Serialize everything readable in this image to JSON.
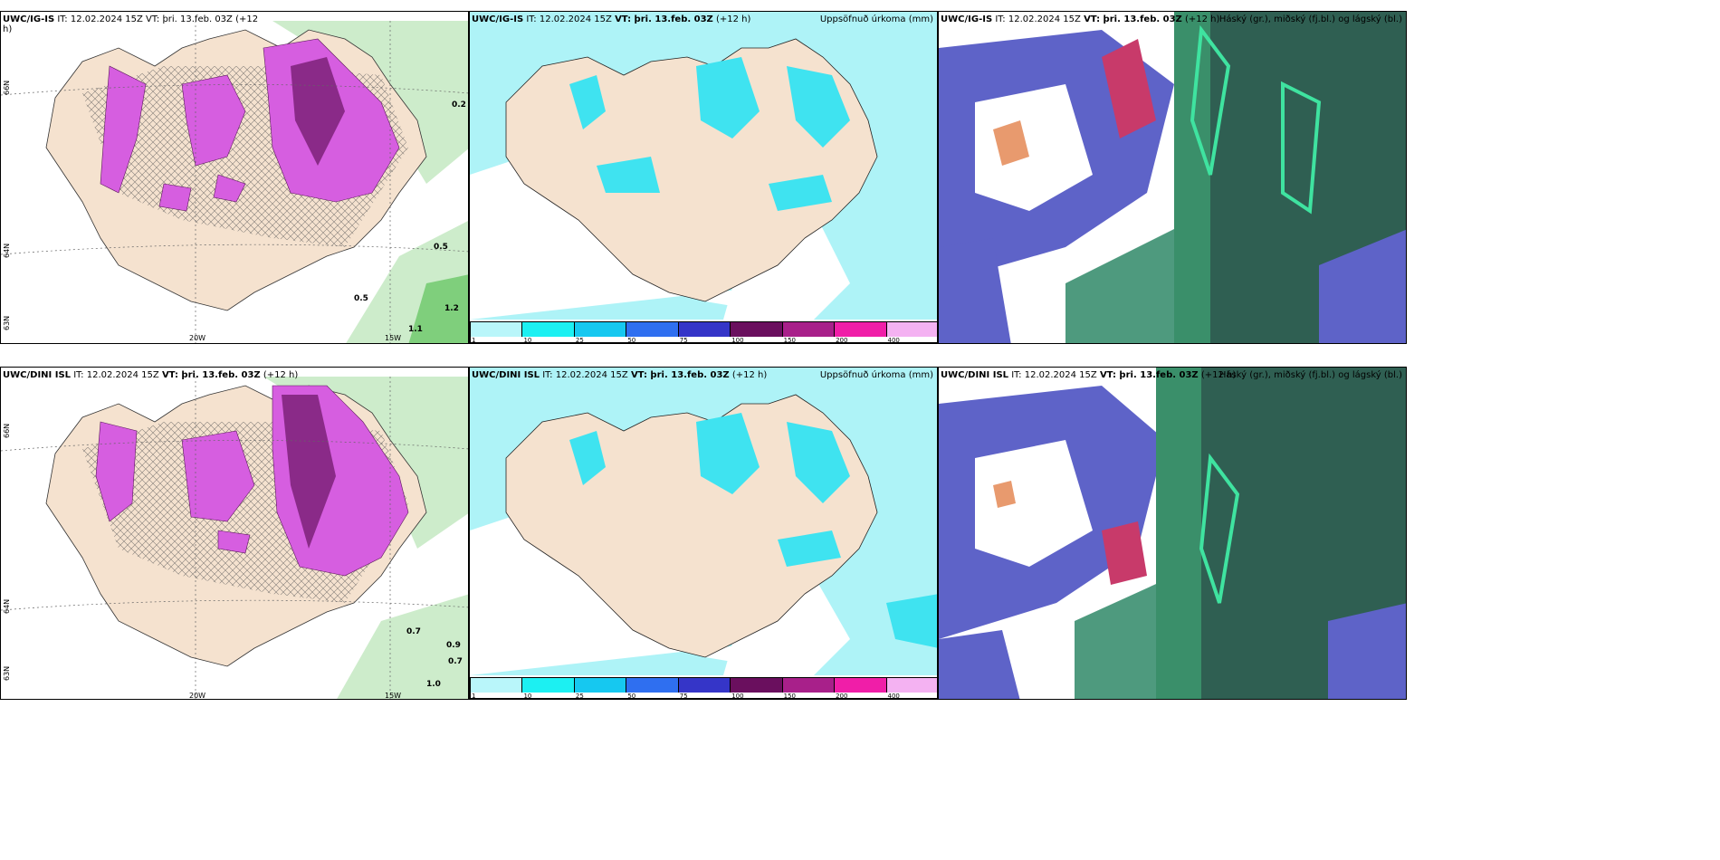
{
  "panels": {
    "top_left": {
      "title_model": "UWC/IG-IS",
      "title_rest": "IT: 12.02.2024 15Z VT: þri. 13.feb. 03Z (+12",
      "title_h": "h)",
      "lat_labels": [
        "66N",
        "64N",
        "63N"
      ],
      "lon_labels": [
        "20W",
        "15W"
      ],
      "values": [
        "0.5",
        "0.5",
        "0.2",
        "1.2",
        "1.1"
      ]
    },
    "top_mid": {
      "title_model": "UWC/IG-IS",
      "title_it": "IT: 12.02.2024 15Z",
      "title_vt": "VT: þri. 13.feb. 03Z",
      "title_lead": "(+12 h)",
      "title_right": "Uppsöfnuð úrkoma (mm)",
      "colorbar_ticks": [
        "1",
        "10",
        "25",
        "50",
        "75",
        "100",
        "150",
        "200",
        "400"
      ]
    },
    "top_right": {
      "title_model": "UWC/IG-IS",
      "title_it": "IT: 12.02.2024 15Z",
      "title_vt": "VT: þri. 13.feb. 03Z",
      "title_lead": "(+12 h)",
      "title_right": "Háský (gr.), miðský (fj.bl.) og lágský (bl.)"
    },
    "bottom_left": {
      "title_model": "UWC/DINI ISL",
      "title_it": "IT: 12.02.2024 15Z",
      "title_vt": "VT: þri. 13.feb. 03Z",
      "title_lead": "(+12 h)",
      "lat_labels": [
        "66N",
        "64N",
        "63N"
      ],
      "lon_labels": [
        "20W",
        "15W"
      ],
      "values": [
        "0.7",
        "0.9",
        "0.7",
        "1.0"
      ]
    },
    "bottom_mid": {
      "title_model": "UWC/DINI ISL",
      "title_it": "IT: 12.02.2024 15Z",
      "title_vt": "VT: þri. 13.feb. 03Z",
      "title_lead": "(+12 h)",
      "title_right": "Uppsöfnuð úrkoma (mm)",
      "colorbar_ticks": [
        "1",
        "10",
        "25",
        "50",
        "75",
        "100",
        "150",
        "200",
        "400"
      ]
    },
    "bottom_right": {
      "title_model": "UWC/DINI ISL",
      "title_it": "IT: 12.02.2024 15Z",
      "title_vt": "VT: þri. 13.feb. 03Z",
      "title_lead": "(+12 h)",
      "title_right": "Háský (gr.), miðský (fj.bl.) og lágský (bl.)"
    }
  },
  "colors": {
    "land": "#f5e2cf",
    "sea_precip_light": "#aef3f7",
    "sea_precip_mid": "#3fe3f0",
    "snow_magenta": "#d65ee0",
    "green_light": "#cdeccb",
    "cloud_dark_teal": "#2f5f52",
    "cloud_blue": "#5e63c8"
  },
  "colorbar_colors": [
    "#b9f6fa",
    "#1cf0f2",
    "#16c8f0",
    "#2f6ff0",
    "#3535c8",
    "#6a0f5e",
    "#a8208a",
    "#f01ea8",
    "#f4b2f2"
  ]
}
